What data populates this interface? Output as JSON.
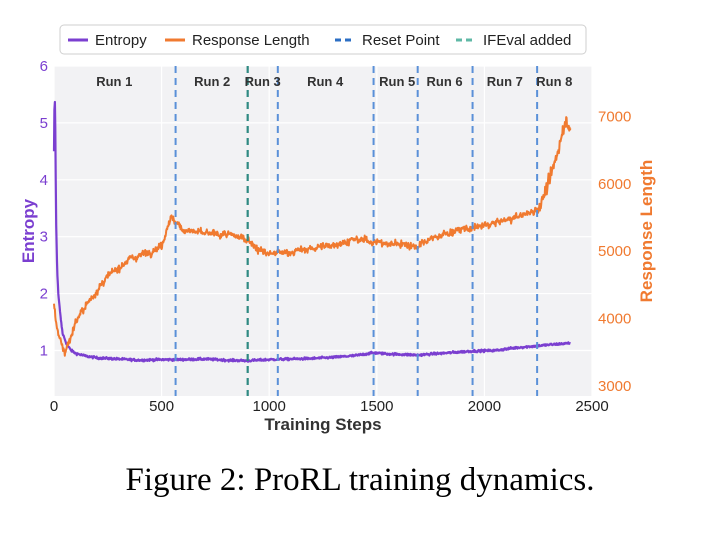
{
  "caption": "Figure 2: ProRL training dynamics.",
  "chart_data": {
    "type": "line",
    "xlabel": "Training Steps",
    "ylabel_left": "Entropy",
    "ylabel_right": "Response Length",
    "xlim": [
      0,
      2500
    ],
    "ylim_left": [
      0.2,
      6.0
    ],
    "ylim_right": [
      2850,
      7750
    ],
    "x_ticks": [
      0,
      500,
      1000,
      1500,
      2000,
      2500
    ],
    "y_left_ticks": [
      1,
      2,
      3,
      4,
      5,
      6
    ],
    "y_right_ticks": [
      3000,
      4000,
      5000,
      6000,
      7000
    ],
    "grid": true,
    "legend_position": "top",
    "legend": [
      {
        "label": "Entropy",
        "style": "solid",
        "color": "#7b3fd0"
      },
      {
        "label": "Response Length",
        "style": "solid",
        "color": "#f07a30"
      },
      {
        "label": "Reset Point",
        "style": "dashed",
        "color": "#2c6fc4"
      },
      {
        "label": "IFEval added",
        "style": "dashed",
        "color": "#5fb8a6"
      }
    ],
    "colors": {
      "entropy": "#7b3fd0",
      "response_length": "#f07a30",
      "reset": "#5a90d8",
      "ifeval": "#2f8a82"
    },
    "reset_points": [
      565,
      1040,
      1485,
      1690,
      1945,
      2245
    ],
    "ifeval_point": 900,
    "runs": [
      {
        "label": "Run 1",
        "x_center": 280
      },
      {
        "label": "Run 2",
        "x_center": 735
      },
      {
        "label": "Run 3",
        "x_center": 970
      },
      {
        "label": "Run 4",
        "x_center": 1260
      },
      {
        "label": "Run 5",
        "x_center": 1595
      },
      {
        "label": "Run 6",
        "x_center": 1815
      },
      {
        "label": "Run 7",
        "x_center": 2095
      },
      {
        "label": "Run 8",
        "x_center": 2325
      }
    ],
    "series": [
      {
        "name": "Entropy",
        "axis": "left",
        "x": [
          0,
          3,
          6,
          10,
          15,
          20,
          30,
          40,
          60,
          80,
          100,
          150,
          200,
          300,
          400,
          500,
          565,
          600,
          700,
          800,
          900,
          1000,
          1100,
          1200,
          1300,
          1400,
          1485,
          1550,
          1690,
          1800,
          1945,
          2050,
          2150,
          2245,
          2300,
          2400
        ],
        "values": [
          4.5,
          5.6,
          4.9,
          3.2,
          2.4,
          2.0,
          1.6,
          1.3,
          1.1,
          1.0,
          0.95,
          0.9,
          0.87,
          0.85,
          0.83,
          0.84,
          0.84,
          0.84,
          0.85,
          0.83,
          0.82,
          0.84,
          0.85,
          0.86,
          0.88,
          0.91,
          0.96,
          0.94,
          0.92,
          0.95,
          0.99,
          1.0,
          1.05,
          1.08,
          1.1,
          1.13
        ]
      },
      {
        "name": "Response Length",
        "axis": "right",
        "x": [
          0,
          10,
          25,
          50,
          75,
          100,
          150,
          200,
          250,
          300,
          350,
          400,
          450,
          500,
          540,
          565,
          600,
          700,
          800,
          900,
          950,
          1000,
          1100,
          1200,
          1300,
          1400,
          1485,
          1550,
          1600,
          1690,
          1750,
          1800,
          1900,
          1945,
          2000,
          2100,
          2200,
          2245,
          2260,
          2300,
          2330,
          2360,
          2380,
          2400
        ],
        "values": [
          4200,
          3950,
          3700,
          3500,
          3700,
          3950,
          4200,
          4420,
          4620,
          4760,
          4880,
          4940,
          5000,
          5080,
          5500,
          5430,
          5320,
          5260,
          5250,
          5180,
          5020,
          4960,
          4990,
          5040,
          5100,
          5170,
          5150,
          5100,
          5120,
          5070,
          5180,
          5240,
          5330,
          5340,
          5380,
          5460,
          5560,
          5620,
          5700,
          6000,
          6350,
          6750,
          6950,
          6850
        ]
      }
    ]
  }
}
